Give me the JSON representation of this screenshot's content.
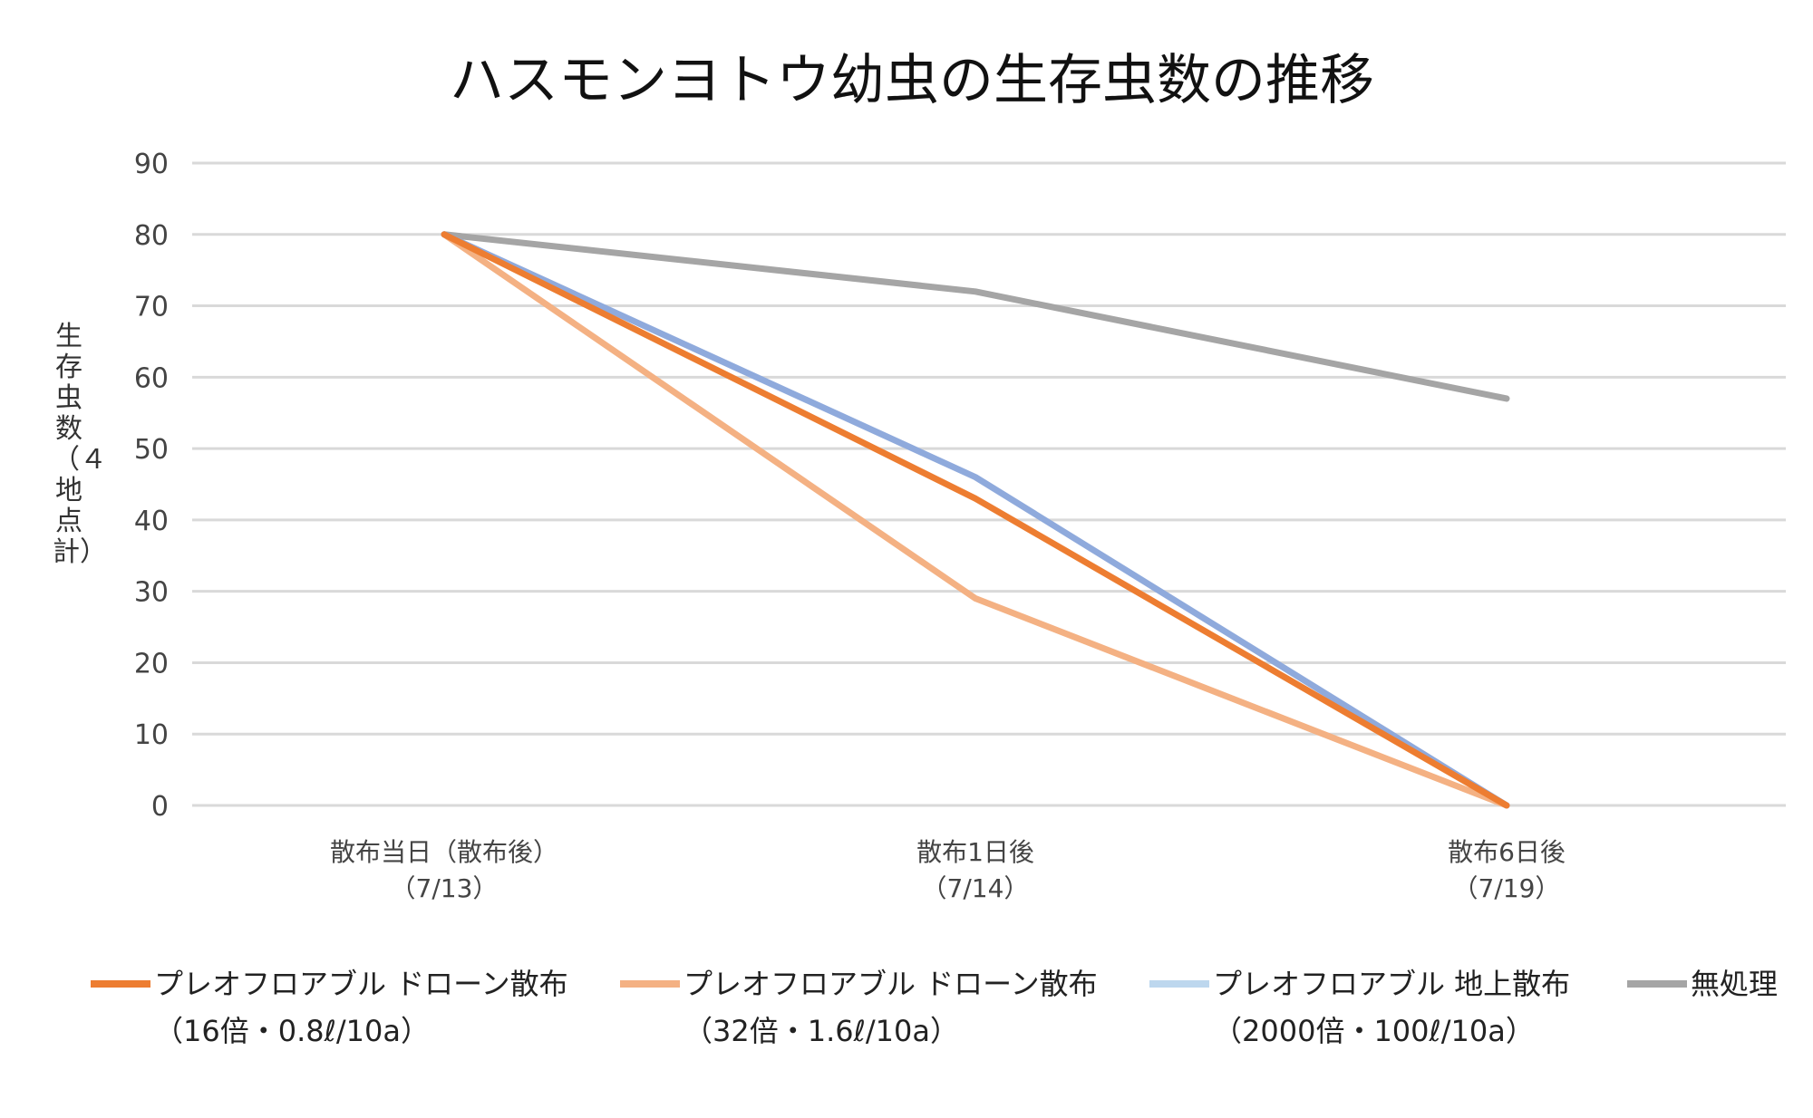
{
  "chart_data": {
    "type": "line",
    "title": "ハスモンヨトウ幼虫の生存虫数の推移",
    "ylabel": "生存虫数（４地点計）",
    "xlabel": "",
    "ylim": [
      0,
      90
    ],
    "yticks": [
      0,
      10,
      20,
      30,
      40,
      50,
      60,
      70,
      80,
      90
    ],
    "grid": true,
    "legend_position": "bottom",
    "categories": [
      {
        "line1": "散布当日（散布後）",
        "line2": "（7/13）"
      },
      {
        "line1": "散布1日後",
        "line2": "（7/14）"
      },
      {
        "line1": "散布6日後",
        "line2": "（7/19）"
      }
    ],
    "series": [
      {
        "name_line1": "プレオフロアブル ドローン散布",
        "name_line2": "（16倍・0.8ℓ/10a）",
        "color": "#ED7D31",
        "legend_color": "#ED7D31",
        "values": [
          80,
          43,
          0
        ]
      },
      {
        "name_line1": "プレオフロアブル ドローン散布",
        "name_line2": "（32倍・1.6ℓ/10a）",
        "color": "#F4B183",
        "legend_color": "#F4B183",
        "values": [
          80,
          29,
          0
        ]
      },
      {
        "name_line1": "プレオフロアブル 地上散布",
        "name_line2": "（2000倍・100ℓ/10a）",
        "color": "#8FAADC",
        "legend_color": "#BDD7EE",
        "values": [
          80,
          46,
          0
        ]
      },
      {
        "name_line1": "無処理",
        "name_line2": "",
        "color": "#A5A5A5",
        "legend_color": "#A5A5A5",
        "values": [
          80,
          72,
          57
        ]
      }
    ]
  }
}
